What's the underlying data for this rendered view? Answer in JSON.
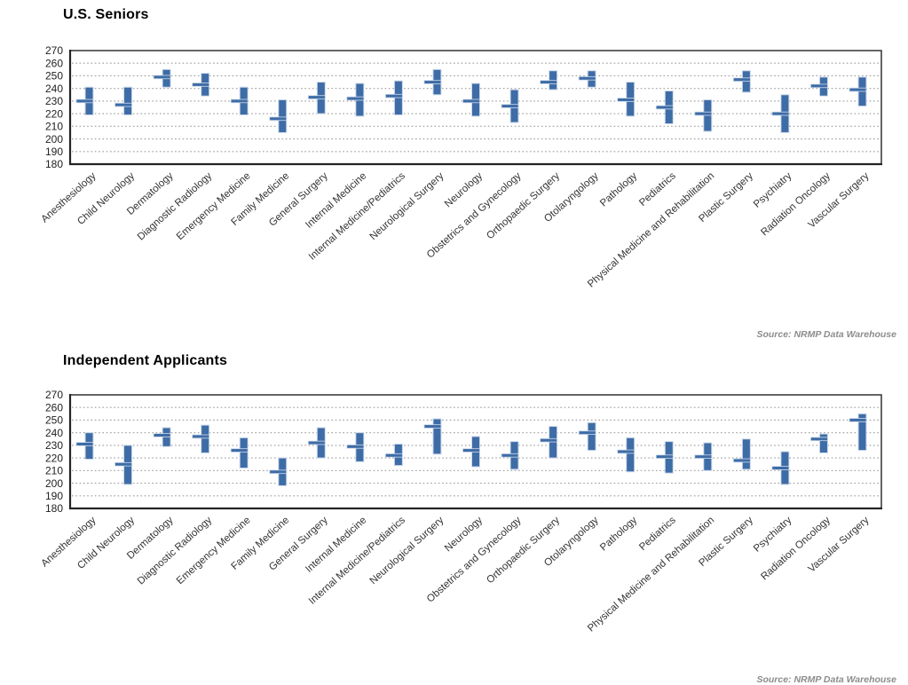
{
  "colors": {
    "bar": "#3e6ca6",
    "bar_outline": "#ccd9eb",
    "grid": "#9b9b9b",
    "border": "#3f3f3f",
    "border_heavy": "#242424",
    "axis_text": "#1f1f1f",
    "label_text": "#333333",
    "title_text": "#000000",
    "source_text": "#8c8c8c"
  },
  "chart_data": [
    {
      "type": "range-bar",
      "title": "U.S. Seniors",
      "source": "Source: NRMP Data Warehouse",
      "ylim": [
        180,
        270
      ],
      "yticks": [
        270,
        260,
        250,
        240,
        230,
        220,
        210,
        200,
        190,
        180
      ],
      "grid": "dotted-horizontal",
      "legend": "none",
      "categories": [
        "Anesthesiology",
        "Child Neurology",
        "Dermatology",
        "Diagnostic Radiology",
        "Emergency Medicine",
        "Family Medicine",
        "General Surgery",
        "Internal Medicine",
        "Internal Medicine/Pediatrics",
        "Neurological Surgery",
        "Neurology",
        "Obstetrics and Gynecology",
        "Orthopaedic Surgery",
        "Otolaryngology",
        "Pathology",
        "Pediatrics",
        "Physical Medicine and Rehabilitation",
        "Plastic Surgery",
        "Psychiatry",
        "Radiation Oncology",
        "Vascular Surgery"
      ],
      "series": [
        {
          "name": "low",
          "values": [
            219,
            219,
            241,
            234,
            219,
            205,
            220,
            218,
            219,
            235,
            218,
            213,
            239,
            241,
            218,
            212,
            206,
            237,
            205,
            234,
            226
          ]
        },
        {
          "name": "marker",
          "values": [
            230,
            227,
            249,
            243,
            230,
            216,
            233,
            232,
            234,
            245,
            230,
            226,
            245,
            248,
            231,
            225,
            220,
            247,
            220,
            242,
            239
          ]
        },
        {
          "name": "high",
          "values": [
            241,
            241,
            255,
            252,
            241,
            231,
            245,
            244,
            246,
            255,
            244,
            239,
            254,
            254,
            245,
            238,
            231,
            254,
            235,
            249,
            249
          ]
        }
      ]
    },
    {
      "type": "range-bar",
      "title": "Independent Applicants",
      "source": "Source: NRMP Data Warehouse",
      "ylim": [
        180,
        270
      ],
      "yticks": [
        270,
        260,
        250,
        240,
        230,
        220,
        210,
        200,
        190,
        180
      ],
      "grid": "dotted-horizontal",
      "legend": "none",
      "categories": [
        "Anesthesiology",
        "Child Neurology",
        "Dermatology",
        "Diagnostic Radiology",
        "Emergency Medicine",
        "Family Medicine",
        "General Surgery",
        "Internal Medicine",
        "Internal Medicine/Pediatrics",
        "Neurological Surgery",
        "Neurology",
        "Obstetrics and Gynecology",
        "Orthopaedic Surgery",
        "Otolaryngology",
        "Pathology",
        "Pediatrics",
        "Physical Medicine and Rehabilitation",
        "Plastic Surgery",
        "Psychiatry",
        "Radiation Oncology",
        "Vascular Surgery"
      ],
      "series": [
        {
          "name": "low",
          "values": [
            219,
            199,
            229,
            224,
            212,
            198,
            220,
            217,
            214,
            223,
            213,
            211,
            220,
            226,
            209,
            208,
            210,
            211,
            199,
            224,
            226
          ]
        },
        {
          "name": "marker",
          "values": [
            231,
            215,
            238,
            237,
            226,
            209,
            232,
            229,
            222,
            245,
            226,
            222,
            234,
            240,
            225,
            221,
            221,
            218,
            212,
            235,
            250
          ]
        },
        {
          "name": "high",
          "values": [
            240,
            230,
            244,
            246,
            236,
            220,
            244,
            240,
            231,
            251,
            237,
            233,
            245,
            248,
            236,
            233,
            232,
            235,
            225,
            239,
            255
          ]
        }
      ]
    }
  ]
}
